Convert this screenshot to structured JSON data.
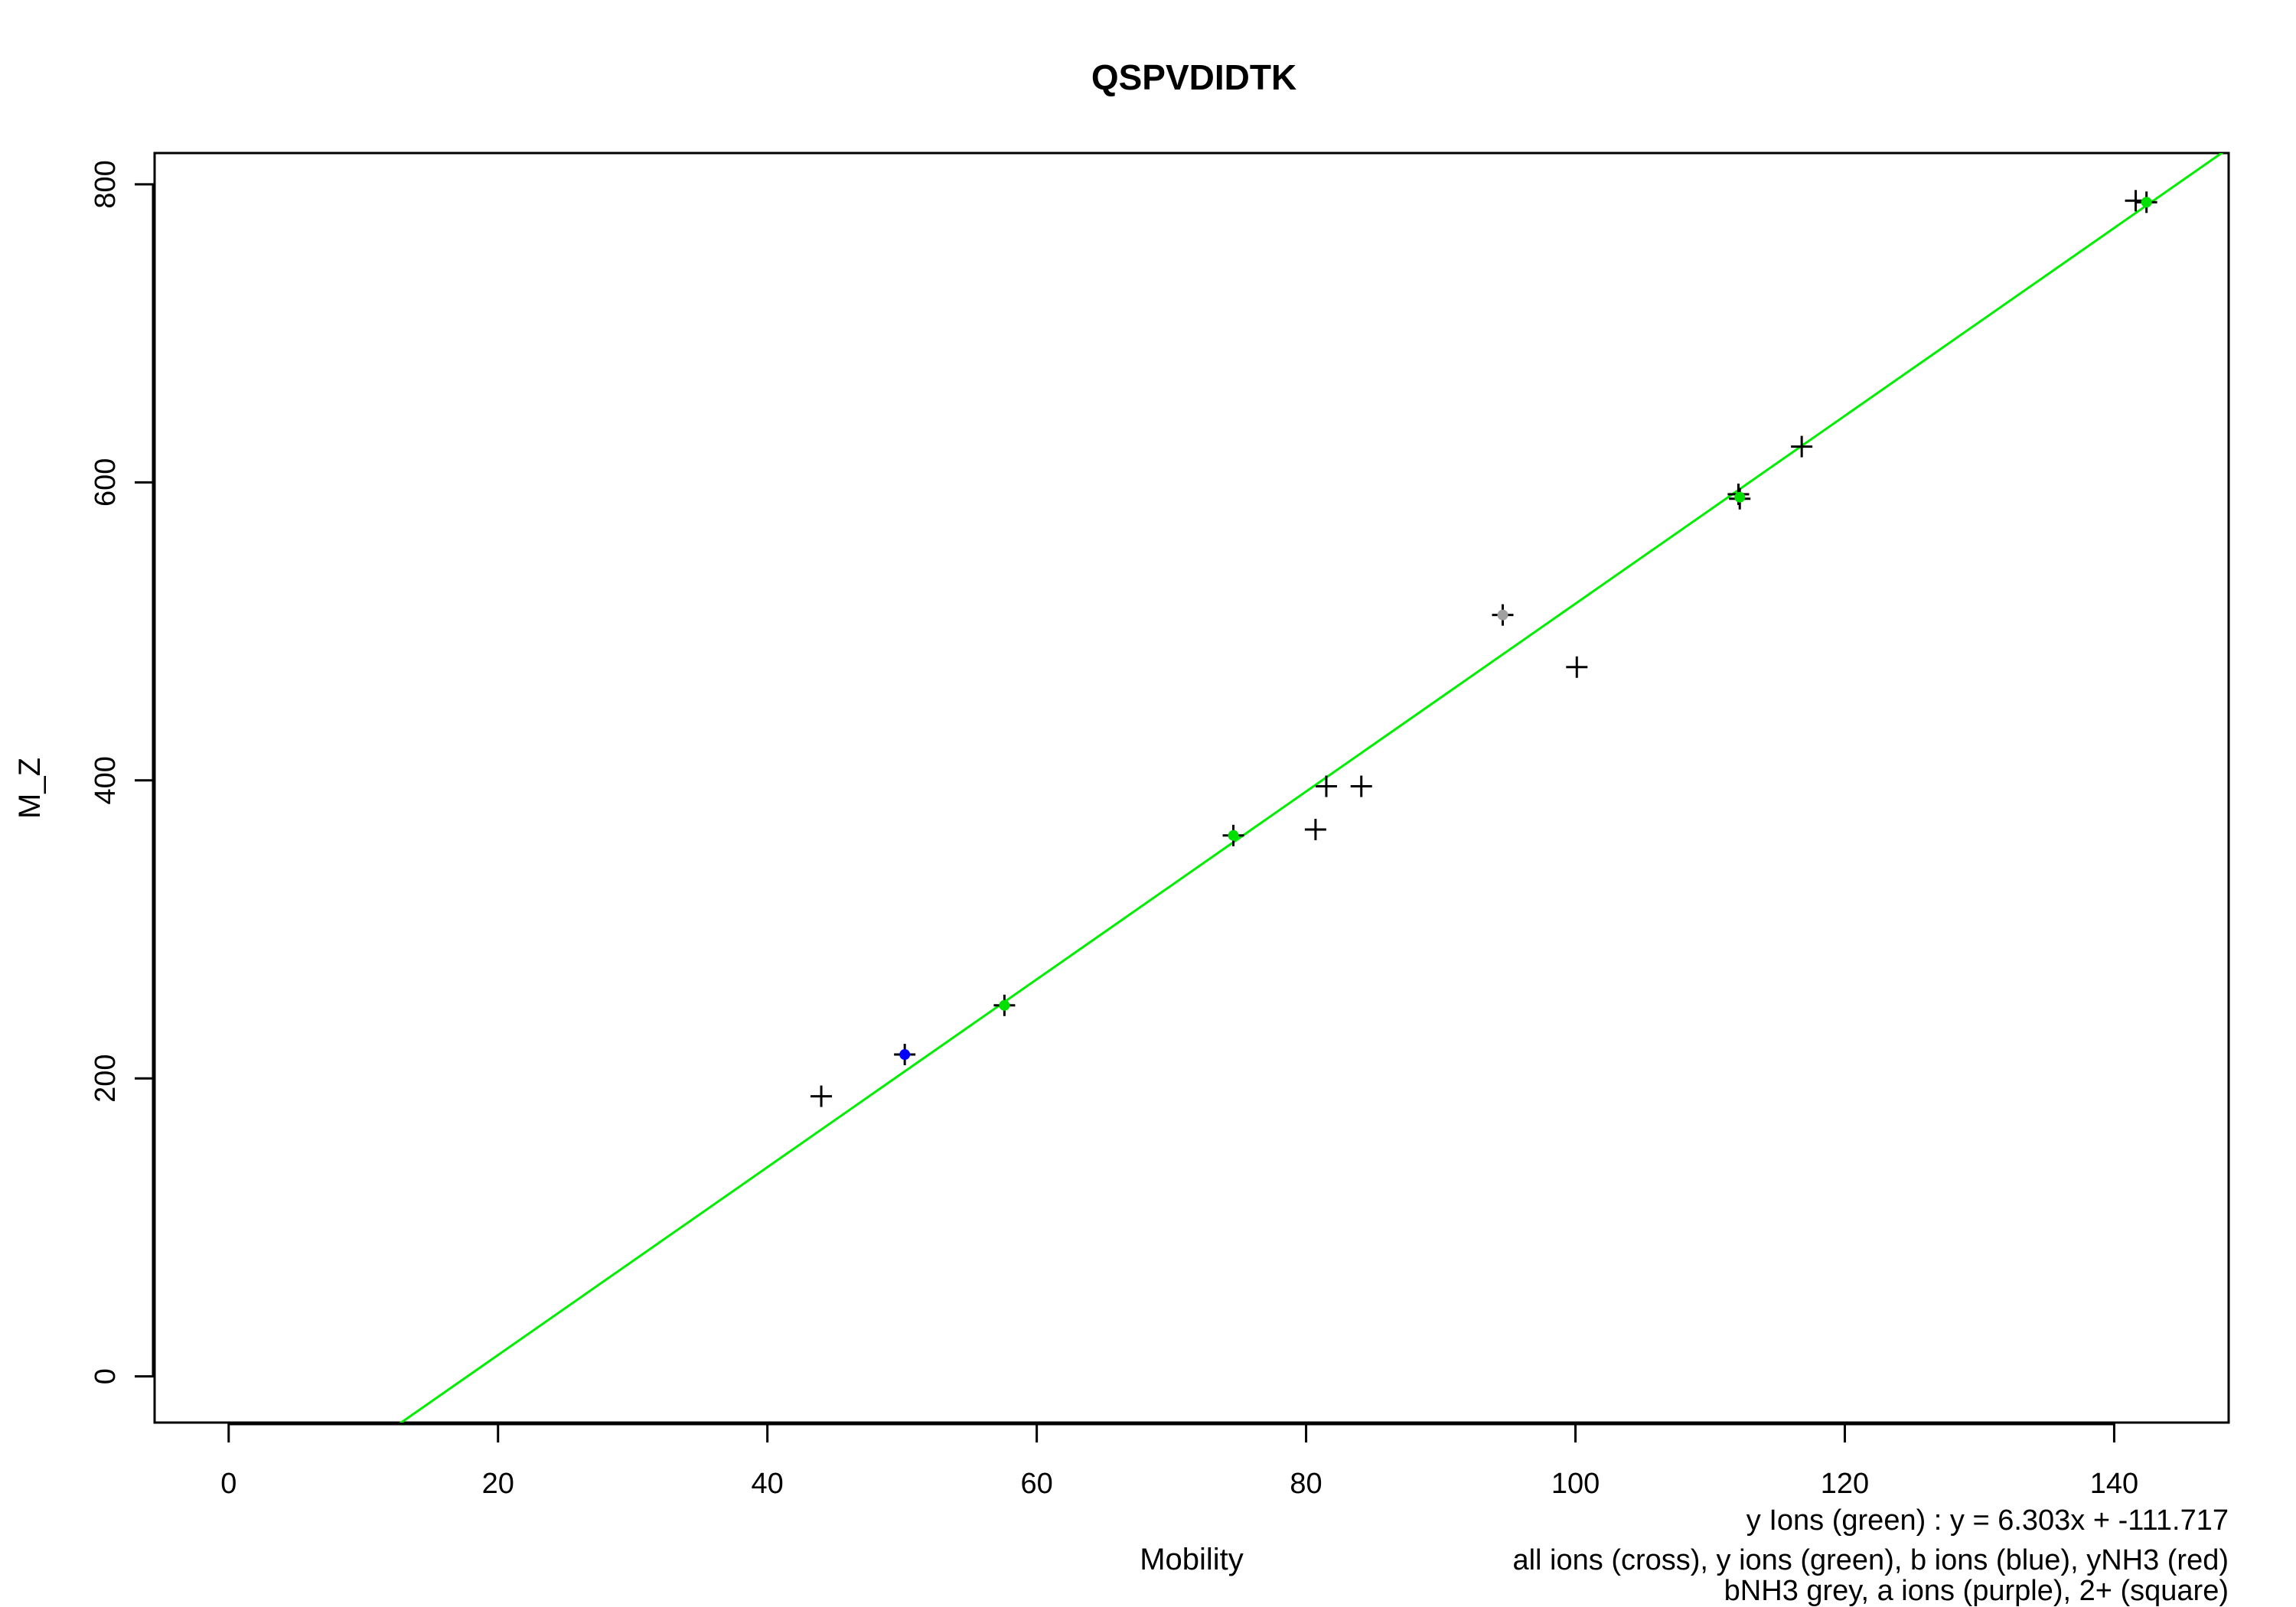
{
  "chart_data": {
    "type": "scatter",
    "title": "QSPVDIDTK",
    "xlabel": "Mobility",
    "ylabel": "M_Z",
    "xlim": [
      -5.5,
      148.5
    ],
    "ylim": [
      -31,
      821
    ],
    "x_ticks": [
      0,
      20,
      40,
      60,
      80,
      100,
      120,
      140
    ],
    "y_ticks": [
      0,
      200,
      400,
      600,
      800
    ],
    "grid": false,
    "fit_label": "y Ions (green) : y = 6.303x + -111.717",
    "legend_lines": [
      "all ions (cross), y ions (green), b ions (blue), yNH3 (red)",
      "bNH3 grey, a ions (purple), 2+ (square)"
    ],
    "colors": {
      "y_ions": "#00e000",
      "b_ions": "#0000ff",
      "bNH3": "#a0a0a0",
      "all_ions": "#000000",
      "fit_line": "#00ee00"
    },
    "series": [
      {
        "name": "all ions",
        "marker": "cross",
        "color": "#000000",
        "points": [
          {
            "x": 44.0,
            "y": 188
          },
          {
            "x": 50.2,
            "y": 216
          },
          {
            "x": 57.6,
            "y": 249
          },
          {
            "x": 74.6,
            "y": 363
          },
          {
            "x": 80.7,
            "y": 367
          },
          {
            "x": 81.5,
            "y": 396
          },
          {
            "x": 84.1,
            "y": 396
          },
          {
            "x": 94.6,
            "y": 511
          },
          {
            "x": 100.1,
            "y": 476
          },
          {
            "x": 112.1,
            "y": 592
          },
          {
            "x": 112.2,
            "y": 589
          },
          {
            "x": 116.8,
            "y": 624
          },
          {
            "x": 141.6,
            "y": 789
          },
          {
            "x": 142.4,
            "y": 788
          }
        ]
      },
      {
        "name": "y ions",
        "marker": "dot",
        "color": "#00e000",
        "points": [
          {
            "x": 57.6,
            "y": 249
          },
          {
            "x": 74.6,
            "y": 363
          },
          {
            "x": 112.2,
            "y": 590
          },
          {
            "x": 142.4,
            "y": 788
          }
        ]
      },
      {
        "name": "b ions",
        "marker": "dot",
        "color": "#0000ff",
        "points": [
          {
            "x": 50.2,
            "y": 216
          }
        ]
      },
      {
        "name": "bNH3",
        "marker": "dot",
        "color": "#a0a0a0",
        "points": [
          {
            "x": 94.6,
            "y": 511
          }
        ]
      }
    ],
    "fit": {
      "slope": 6.303,
      "intercept": -111.717
    }
  }
}
